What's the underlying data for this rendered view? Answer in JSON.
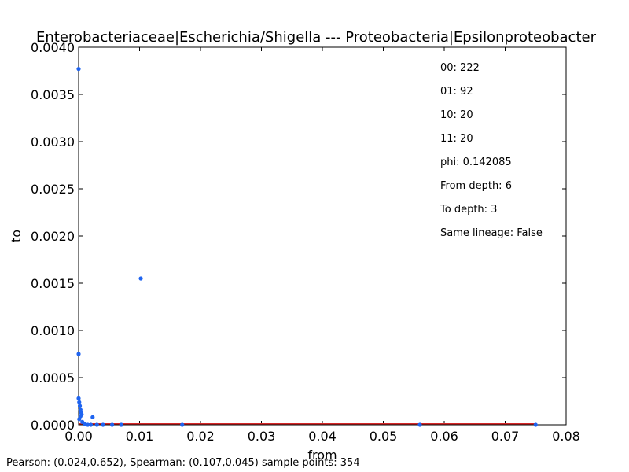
{
  "chart_data": {
    "type": "scatter",
    "title": "Enterobacteriaceae|Escherichia/Shigella --- Proteobacteria|Epsilonproteobacter",
    "xlabel": "from",
    "ylabel": "to",
    "xlim": [
      0.0,
      0.08
    ],
    "ylim": [
      0.0,
      0.004
    ],
    "x_ticks": [
      "0.00",
      "0.01",
      "0.02",
      "0.03",
      "0.04",
      "0.05",
      "0.06",
      "0.07",
      "0.08"
    ],
    "y_ticks": [
      "0.0000",
      "0.0005",
      "0.0010",
      "0.0015",
      "0.0020",
      "0.0025",
      "0.0030",
      "0.0035",
      "0.0040"
    ],
    "grid": false,
    "series": [
      {
        "color": "#1f64f0",
        "points": [
          [
            0.0,
            0.00377
          ],
          [
            0.0102,
            0.00155
          ],
          [
            0.0,
            0.00075
          ],
          [
            0.0,
            0.00028
          ],
          [
            0.0001,
            0.00024
          ],
          [
            0.0002,
            0.0002
          ],
          [
            0.0003,
            0.00016
          ],
          [
            0.0004,
            0.00013
          ],
          [
            0.0005,
            0.00011
          ],
          [
            0.0003,
            9e-05
          ],
          [
            0.0001,
            6e-05
          ],
          [
            0.0006,
            3e-05
          ],
          [
            0.0023,
            8e-05
          ],
          [
            0.001,
            1e-05
          ],
          [
            0.0015,
            0.0
          ],
          [
            0.002,
            0.0
          ],
          [
            0.003,
            0.0
          ],
          [
            0.004,
            0.0
          ],
          [
            0.0055,
            0.0
          ],
          [
            0.007,
            0.0
          ],
          [
            0.017,
            0.0
          ],
          [
            0.056,
            0.0
          ],
          [
            0.075,
            0.0
          ]
        ]
      }
    ],
    "fit_line": {
      "color": "#d62728",
      "x": [
        0.0,
        0.0752
      ],
      "y": [
        1e-05,
        1e-05
      ]
    },
    "annotations": [
      "00: 222",
      "01: 92",
      "10: 20",
      "11: 20",
      "phi: 0.142085",
      "From depth: 6",
      "To depth: 3",
      "Same lineage: False"
    ]
  },
  "footer": "Pearson: (0.024,0.652), Spearman: (0.107,0.045) sample points: 354"
}
